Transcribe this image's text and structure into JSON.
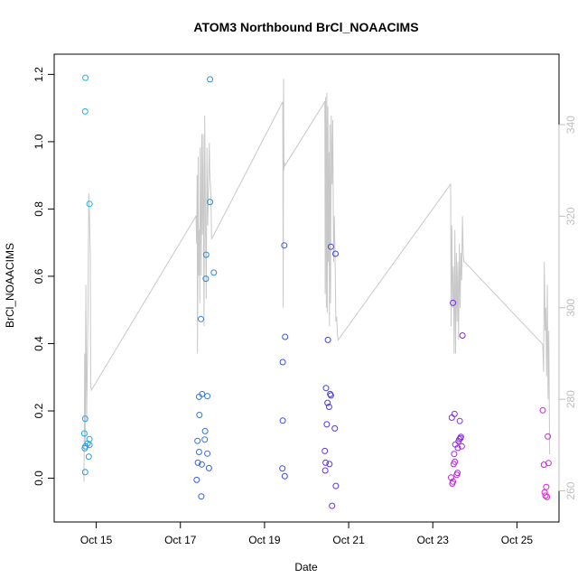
{
  "chart_data": {
    "type": "scatter",
    "title": "ATOM3 Northbound BrCl_NOAACIMS",
    "xlabel": "Date",
    "ylabel": "BrCl_NOAACIMS",
    "xlim": [
      "2016-10-14T00:00",
      "2016-10-26T00:00"
    ],
    "ylim": [
      -0.13,
      1.26
    ],
    "y2lim": [
      253.2,
      355.4
    ],
    "x_ticks": [
      {
        "label": "Oct 15",
        "date": "2016-10-15T00:00"
      },
      {
        "label": "Oct 17",
        "date": "2016-10-17T00:00"
      },
      {
        "label": "Oct 19",
        "date": "2016-10-19T00:00"
      },
      {
        "label": "Oct 21",
        "date": "2016-10-21T00:00"
      },
      {
        "label": "Oct 23",
        "date": "2016-10-23T00:00"
      },
      {
        "label": "Oct 25",
        "date": "2016-10-25T00:00"
      }
    ],
    "y_ticks": [
      "0.0",
      "0.2",
      "0.4",
      "0.6",
      "0.8",
      "1.0",
      "1.2"
    ],
    "y2_ticks": [
      "260",
      "280",
      "300",
      "320",
      "340"
    ],
    "grid": false,
    "legend": "none",
    "colors": {
      "scatter_start": "#1cb5e6",
      "scatter_mid": "#3b3ee6",
      "scatter_end": "#e61cd8",
      "line": "#c8c8c8",
      "right_axis": "#bebebe"
    },
    "points": [
      {
        "x": "2016-10-14T17:51",
        "y": 1.19
      },
      {
        "x": "2016-10-14T17:39",
        "y": 1.09
      },
      {
        "x": "2016-10-14T20:10",
        "y": 0.815
      },
      {
        "x": "2016-10-14T17:39",
        "y": 0.177
      },
      {
        "x": "2016-10-14T17:13",
        "y": 0.133
      },
      {
        "x": "2016-10-14T20:10",
        "y": 0.116
      },
      {
        "x": "2016-10-14T19:05",
        "y": 0.103
      },
      {
        "x": "2016-10-14T20:10",
        "y": 0.099
      },
      {
        "x": "2016-10-14T17:51",
        "y": 0.095
      },
      {
        "x": "2016-10-14T17:26",
        "y": 0.089
      },
      {
        "x": "2016-10-14T19:44",
        "y": 0.064
      },
      {
        "x": "2016-10-14T17:39",
        "y": 0.018
      },
      {
        "x": "2016-10-17T16:57",
        "y": 1.185
      },
      {
        "x": "2016-10-17T16:57",
        "y": 0.821
      },
      {
        "x": "2016-10-17T14:44",
        "y": 0.664
      },
      {
        "x": "2016-10-17T19:05",
        "y": 0.611
      },
      {
        "x": "2016-10-17T14:31",
        "y": 0.593
      },
      {
        "x": "2016-10-17T11:44",
        "y": 0.473
      },
      {
        "x": "2016-10-17T12:23",
        "y": 0.25
      },
      {
        "x": "2016-10-17T15:23",
        "y": 0.244
      },
      {
        "x": "2016-10-17T10:38",
        "y": 0.242
      },
      {
        "x": "2016-10-17T10:51",
        "y": 0.188
      },
      {
        "x": "2016-10-17T14:05",
        "y": 0.14
      },
      {
        "x": "2016-10-17T13:53",
        "y": 0.115
      },
      {
        "x": "2016-10-17T09:45",
        "y": 0.111
      },
      {
        "x": "2016-10-17T10:38",
        "y": 0.078
      },
      {
        "x": "2016-10-17T15:23",
        "y": 0.073
      },
      {
        "x": "2016-10-17T09:59",
        "y": 0.046
      },
      {
        "x": "2016-10-17T12:10",
        "y": 0.041
      },
      {
        "x": "2016-10-17T16:17",
        "y": 0.03
      },
      {
        "x": "2016-10-17T09:19",
        "y": -0.005
      },
      {
        "x": "2016-10-17T11:57",
        "y": -0.054
      },
      {
        "x": "2016-10-19T11:18",
        "y": 0.692
      },
      {
        "x": "2016-10-19T11:44",
        "y": 0.42
      },
      {
        "x": "2016-10-19T10:25",
        "y": 0.345
      },
      {
        "x": "2016-10-19T10:25",
        "y": 0.171
      },
      {
        "x": "2016-10-19T10:12",
        "y": 0.029
      },
      {
        "x": "2016-10-19T11:31",
        "y": 0.006
      },
      {
        "x": "2016-10-20T13:53",
        "y": 0.688
      },
      {
        "x": "2016-10-20T16:30",
        "y": 0.667
      },
      {
        "x": "2016-10-20T12:10",
        "y": 0.411
      },
      {
        "x": "2016-10-20T11:05",
        "y": 0.268
      },
      {
        "x": "2016-10-20T13:27",
        "y": 0.25
      },
      {
        "x": "2016-10-20T13:53",
        "y": 0.246
      },
      {
        "x": "2016-10-20T11:57",
        "y": 0.224
      },
      {
        "x": "2016-10-20T12:50",
        "y": 0.212
      },
      {
        "x": "2016-10-20T11:31",
        "y": 0.16
      },
      {
        "x": "2016-10-20T16:03",
        "y": 0.148
      },
      {
        "x": "2016-10-20T10:25",
        "y": 0.081
      },
      {
        "x": "2016-10-20T10:51",
        "y": 0.046
      },
      {
        "x": "2016-10-20T13:01",
        "y": 0.042
      },
      {
        "x": "2016-10-20T10:38",
        "y": 0.023
      },
      {
        "x": "2016-10-20T16:43",
        "y": -0.023
      },
      {
        "x": "2016-10-20T14:32",
        "y": -0.082
      },
      {
        "x": "2016-10-23T11:31",
        "y": 0.521
      },
      {
        "x": "2016-10-23T16:56",
        "y": 0.424
      },
      {
        "x": "2016-10-23T12:23",
        "y": 0.191
      },
      {
        "x": "2016-10-23T10:51",
        "y": 0.18
      },
      {
        "x": "2016-10-23T15:23",
        "y": 0.17
      },
      {
        "x": "2016-10-23T16:03",
        "y": 0.123
      },
      {
        "x": "2016-10-23T15:50",
        "y": 0.119
      },
      {
        "x": "2016-10-23T15:10",
        "y": 0.116
      },
      {
        "x": "2016-10-23T14:44",
        "y": 0.11
      },
      {
        "x": "2016-10-23T12:50",
        "y": 0.1
      },
      {
        "x": "2016-10-23T14:18",
        "y": 0.09
      },
      {
        "x": "2016-10-23T16:30",
        "y": 0.095
      },
      {
        "x": "2016-10-23T12:10",
        "y": 0.072
      },
      {
        "x": "2016-10-23T12:36",
        "y": 0.049
      },
      {
        "x": "2016-10-23T11:57",
        "y": 0.042
      },
      {
        "x": "2016-10-23T14:05",
        "y": 0.016
      },
      {
        "x": "2016-10-23T13:40",
        "y": 0.01
      },
      {
        "x": "2016-10-23T10:25",
        "y": 0.002
      },
      {
        "x": "2016-10-23T11:31",
        "y": -0.01
      },
      {
        "x": "2016-10-23T11:05",
        "y": -0.016
      },
      {
        "x": "2016-10-25T14:44",
        "y": 0.202
      },
      {
        "x": "2016-10-25T17:36",
        "y": 0.124
      },
      {
        "x": "2016-10-25T18:02",
        "y": 0.045
      },
      {
        "x": "2016-10-25T15:23",
        "y": 0.04
      },
      {
        "x": "2016-10-25T16:43",
        "y": -0.026
      },
      {
        "x": "2016-10-25T15:50",
        "y": -0.042
      },
      {
        "x": "2016-10-25T16:17",
        "y": -0.052
      },
      {
        "x": "2016-10-25T17:10",
        "y": -0.056
      }
    ],
    "line_series": [
      {
        "x": "2016-10-14T17:00",
        "y": 262
      },
      {
        "x": "2016-10-14T17:26",
        "y": 290
      },
      {
        "x": "2016-10-14T17:39",
        "y": 270
      },
      {
        "x": "2016-10-14T18:05",
        "y": 305
      },
      {
        "x": "2016-10-14T18:31",
        "y": 275
      },
      {
        "x": "2016-10-14T19:18",
        "y": 300
      },
      {
        "x": "2016-10-14T19:44",
        "y": 325
      },
      {
        "x": "2016-10-14T20:10",
        "y": 320
      },
      {
        "x": "2016-10-14T20:36",
        "y": 311
      },
      {
        "x": "2016-10-14T20:49",
        "y": 283
      },
      {
        "x": "2016-10-14T21:15",
        "y": 282
      },
      {
        "x": "2016-10-17T08:53",
        "y": 320
      },
      {
        "x": "2016-10-17T09:19",
        "y": 314
      },
      {
        "x": "2016-10-17T09:32",
        "y": 329
      },
      {
        "x": "2016-10-17T09:45",
        "y": 290
      },
      {
        "x": "2016-10-17T10:12",
        "y": 333
      },
      {
        "x": "2016-10-17T10:25",
        "y": 307
      },
      {
        "x": "2016-10-17T10:51",
        "y": 317
      },
      {
        "x": "2016-10-17T11:05",
        "y": 301
      },
      {
        "x": "2016-10-17T11:18",
        "y": 335
      },
      {
        "x": "2016-10-17T11:57",
        "y": 307
      },
      {
        "x": "2016-10-17T12:10",
        "y": 338
      },
      {
        "x": "2016-10-17T12:36",
        "y": 316
      },
      {
        "x": "2016-10-17T13:01",
        "y": 338
      },
      {
        "x": "2016-10-17T13:27",
        "y": 296
      },
      {
        "x": "2016-10-17T13:53",
        "y": 342
      },
      {
        "x": "2016-10-17T14:18",
        "y": 320
      },
      {
        "x": "2016-10-17T14:44",
        "y": 302
      },
      {
        "x": "2016-10-17T15:10",
        "y": 335
      },
      {
        "x": "2016-10-17T15:36",
        "y": 318
      },
      {
        "x": "2016-10-17T16:03",
        "y": 326
      },
      {
        "x": "2016-10-17T16:30",
        "y": 336
      },
      {
        "x": "2016-10-17T16:43",
        "y": 330
      },
      {
        "x": "2016-10-17T17:23",
        "y": 325
      },
      {
        "x": "2016-10-17T17:49",
        "y": 315
      },
      {
        "x": "2016-10-19T10:25",
        "y": 345
      },
      {
        "x": "2016-10-19T10:38",
        "y": 300
      },
      {
        "x": "2016-10-19T10:51",
        "y": 350
      },
      {
        "x": "2016-10-19T11:05",
        "y": 330
      },
      {
        "x": "2016-10-19T11:18",
        "y": 332
      },
      {
        "x": "2016-10-19T11:31",
        "y": 331
      },
      {
        "x": "2016-10-20T10:25",
        "y": 345
      },
      {
        "x": "2016-10-20T10:38",
        "y": 303
      },
      {
        "x": "2016-10-20T10:51",
        "y": 346
      },
      {
        "x": "2016-10-20T11:05",
        "y": 330
      },
      {
        "x": "2016-10-20T11:18",
        "y": 300
      },
      {
        "x": "2016-10-20T11:31",
        "y": 347
      },
      {
        "x": "2016-10-20T11:44",
        "y": 299
      },
      {
        "x": "2016-10-20T12:10",
        "y": 344
      },
      {
        "x": "2016-10-20T12:23",
        "y": 310
      },
      {
        "x": "2016-10-20T12:50",
        "y": 334
      },
      {
        "x": "2016-10-20T13:01",
        "y": 296
      },
      {
        "x": "2016-10-20T13:14",
        "y": 340
      },
      {
        "x": "2016-10-20T13:40",
        "y": 301
      },
      {
        "x": "2016-10-20T14:05",
        "y": 342
      },
      {
        "x": "2016-10-20T14:31",
        "y": 327
      },
      {
        "x": "2016-10-20T14:57",
        "y": 341
      },
      {
        "x": "2016-10-20T15:23",
        "y": 310
      },
      {
        "x": "2016-10-20T15:50",
        "y": 320
      },
      {
        "x": "2016-10-20T16:16",
        "y": 310
      },
      {
        "x": "2016-10-20T16:43",
        "y": 297
      },
      {
        "x": "2016-10-20T17:09",
        "y": 298
      },
      {
        "x": "2016-10-20T17:36",
        "y": 294
      },
      {
        "x": "2016-10-20T18:02",
        "y": 293
      },
      {
        "x": "2016-10-23T10:12",
        "y": 327
      },
      {
        "x": "2016-10-23T10:25",
        "y": 296
      },
      {
        "x": "2016-10-23T10:51",
        "y": 318
      },
      {
        "x": "2016-10-23T11:18",
        "y": 300
      },
      {
        "x": "2016-10-23T11:44",
        "y": 309
      },
      {
        "x": "2016-10-23T12:10",
        "y": 290
      },
      {
        "x": "2016-10-23T12:36",
        "y": 317
      },
      {
        "x": "2016-10-23T13:01",
        "y": 290
      },
      {
        "x": "2016-10-23T13:27",
        "y": 312
      },
      {
        "x": "2016-10-23T13:53",
        "y": 297
      },
      {
        "x": "2016-10-23T14:18",
        "y": 310
      },
      {
        "x": "2016-10-23T14:44",
        "y": 293
      },
      {
        "x": "2016-10-23T15:10",
        "y": 314
      },
      {
        "x": "2016-10-23T15:36",
        "y": 300
      },
      {
        "x": "2016-10-23T16:03",
        "y": 312
      },
      {
        "x": "2016-10-23T16:29",
        "y": 306
      },
      {
        "x": "2016-10-23T16:55",
        "y": 320
      },
      {
        "x": "2016-10-23T17:20",
        "y": 312
      },
      {
        "x": "2016-10-23T17:46",
        "y": 310
      },
      {
        "x": "2016-10-23T18:12",
        "y": 310
      },
      {
        "x": "2016-10-25T14:44",
        "y": 292
      },
      {
        "x": "2016-10-25T15:10",
        "y": 286
      },
      {
        "x": "2016-10-25T15:36",
        "y": 310
      },
      {
        "x": "2016-10-25T16:03",
        "y": 295
      },
      {
        "x": "2016-10-25T16:29",
        "y": 300
      },
      {
        "x": "2016-10-25T16:55",
        "y": 285
      },
      {
        "x": "2016-10-25T17:20",
        "y": 305
      },
      {
        "x": "2016-10-25T17:46",
        "y": 280
      },
      {
        "x": "2016-10-25T18:12",
        "y": 295
      },
      {
        "x": "2016-10-25T18:38",
        "y": 268
      }
    ]
  }
}
